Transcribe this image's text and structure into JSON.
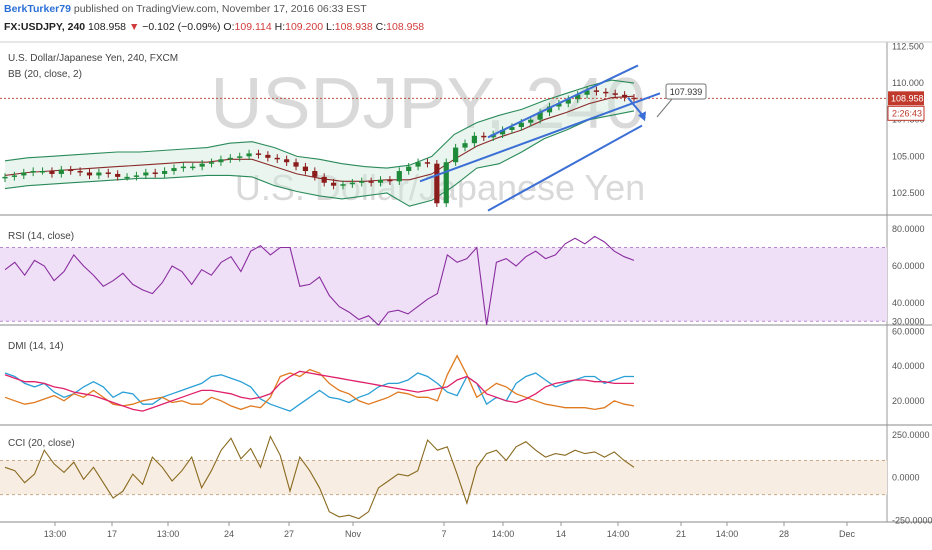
{
  "header": {
    "author": "BerkTurker79",
    "published": "published on TradingView.com, November 17, 2016 06:33 EST",
    "symbol": "FX:USDJPY, 240",
    "last": "108.958",
    "arrow": "▼",
    "change": "−0.102 (−0.09%)",
    "o_label": "O:",
    "o_val": "109.114",
    "h_label": "H:",
    "h_val": "109.200",
    "l_label": "L:",
    "l_val": "108.938",
    "c_label": "C:",
    "c_val": "108.958"
  },
  "price_pane": {
    "title": "U.S. Dollar/Japanese Yen, 240, FXCM",
    "indicator": "BB (20, close, 2)",
    "watermark_symbol": "USDJPY, 240",
    "watermark_name": "U.S. Dollar/Japanese Yen",
    "last_price_tag": "108.958",
    "countdown_tag": "2:26:43",
    "target_label": "107.939"
  },
  "rsi_pane": {
    "title": "RSI (14, close)"
  },
  "dmi_pane": {
    "title": "DMI (14, 14)"
  },
  "cci_pane": {
    "title": "CCI (20, close)"
  },
  "colors": {
    "up_candle": "#1e8a3a",
    "down_candle": "#8b1c1c",
    "bb_band": "#2a8a5a",
    "bb_basis": "#8b2a2a",
    "channel": "#3b6fd6",
    "rsi": "#8a2ea0",
    "rsi_band": "#efe0f7",
    "dmi_plus": "#2a9fd6",
    "dmi_minus": "#e07a20",
    "adx": "#e0206a",
    "cci": "#8a6a20",
    "cci_band": "#f7ede2",
    "last_tag": "#c0392b"
  },
  "chart_data": [
    {
      "type": "candlestick",
      "title": "U.S. Dollar/Japanese Yen, 240, FXCM",
      "ylim": [
        101.0,
        112.8
      ],
      "y_ticks": [
        "112.500",
        "110.000",
        "107.500",
        "105.000",
        "102.500"
      ],
      "y_tick_values": [
        112.5,
        110.0,
        107.5,
        105.0,
        102.5
      ],
      "x_ticks": [
        "13:00",
        "17",
        "13:00",
        "24",
        "27",
        "Nov",
        "7",
        "14:00",
        "14",
        "14:00",
        "21",
        "14:00",
        "28",
        "Dec"
      ],
      "close_series": [
        103.6,
        103.7,
        103.9,
        104.0,
        104.0,
        103.8,
        104.1,
        104.0,
        103.9,
        103.7,
        103.9,
        103.8,
        103.6,
        103.6,
        103.7,
        103.9,
        103.8,
        104.0,
        104.2,
        104.3,
        104.3,
        104.5,
        104.6,
        104.8,
        104.9,
        105.0,
        105.2,
        105.1,
        104.9,
        104.8,
        104.6,
        104.3,
        104.0,
        103.6,
        103.2,
        103.0,
        103.1,
        103.2,
        103.3,
        103.2,
        103.4,
        103.3,
        104.0,
        104.3,
        104.6,
        104.5,
        101.8,
        104.6,
        105.6,
        105.9,
        106.4,
        106.3,
        106.5,
        106.8,
        107.0,
        107.3,
        107.5,
        108.0,
        108.4,
        108.6,
        108.9,
        109.2,
        109.5,
        109.4,
        109.3,
        109.2,
        109.0,
        108.96
      ],
      "bb_upper": [
        104.7,
        104.9,
        105.0,
        105.1,
        105.2,
        105.3,
        105.3,
        105.4,
        105.5,
        105.6,
        105.9,
        106.0,
        105.6,
        105.0,
        104.8,
        104.5,
        104.3,
        104.2,
        104.4,
        105.0,
        106.5,
        107.3,
        107.8,
        108.2,
        108.8,
        109.3,
        109.8,
        110.2,
        110.0
      ],
      "bb_lower": [
        102.8,
        103.0,
        103.1,
        103.2,
        103.3,
        103.4,
        103.5,
        103.5,
        103.6,
        103.7,
        103.7,
        103.6,
        103.0,
        102.6,
        102.3,
        102.1,
        102.3,
        102.5,
        101.6,
        102.0,
        103.0,
        104.2,
        104.5,
        105.3,
        106.2,
        106.8,
        107.5,
        107.8,
        108.1
      ],
      "bb_basis": [
        103.7,
        103.9,
        104.0,
        104.1,
        104.2,
        104.3,
        104.4,
        104.5,
        104.6,
        104.6,
        104.8,
        104.8,
        104.3,
        103.8,
        103.5,
        103.3,
        103.3,
        103.4,
        103.4,
        103.8,
        104.8,
        105.7,
        106.3,
        106.8,
        107.5,
        108.0,
        108.6,
        109.0,
        109.1
      ],
      "channel_upper": {
        "from": [
          488,
          106.3
        ],
        "to": [
          638,
          111.2
        ]
      },
      "channel_lower": {
        "from": [
          488,
          101.3
        ],
        "to": [
          642,
          107.1
        ]
      },
      "midline": {
        "from": [
          420,
          103.3
        ],
        "to": [
          660,
          109.3
        ]
      },
      "projection_arrow": {
        "from": [
          628,
          109.0
        ],
        "to": [
          645,
          107.6
        ]
      },
      "last_price": 108.958
    },
    {
      "type": "line",
      "title": "RSI (14, close)",
      "ylim": [
        28,
        86
      ],
      "y_ticks": [
        "80.0000",
        "60.0000",
        "40.0000",
        "30.0000"
      ],
      "y_tick_values": [
        80,
        60,
        40,
        30
      ],
      "band": [
        30,
        70
      ],
      "values": [
        58,
        62,
        55,
        63,
        60,
        52,
        57,
        66,
        60,
        55,
        49,
        52,
        56,
        50,
        47,
        45,
        51,
        60,
        57,
        50,
        58,
        55,
        62,
        65,
        57,
        68,
        71,
        66,
        70,
        70,
        49,
        50,
        54,
        44,
        38,
        35,
        31,
        33,
        28,
        35,
        36,
        34,
        38,
        42,
        45,
        66,
        62,
        64,
        70,
        28,
        62,
        64,
        60,
        65,
        68,
        64,
        66,
        72,
        75,
        72,
        76,
        73,
        68,
        65,
        63
      ]
    },
    {
      "type": "line",
      "title": "DMI (14, 14)",
      "ylim": [
        6,
        62
      ],
      "y_ticks": [
        "60.0000",
        "40.0000",
        "20.0000"
      ],
      "y_tick_values": [
        60,
        40,
        20
      ],
      "series": [
        {
          "values": [
            36,
            34,
            30,
            28,
            30,
            25,
            22,
            24,
            28,
            31,
            28,
            22,
            25,
            24,
            18,
            18,
            22,
            24,
            26,
            28,
            30,
            34,
            35,
            33,
            31,
            28,
            21,
            18,
            16,
            14,
            18,
            22,
            26,
            22,
            21,
            19,
            22,
            24,
            28,
            30,
            30,
            32,
            36,
            34,
            30,
            25,
            23,
            34,
            30,
            18,
            22,
            20,
            30,
            34,
            36,
            32,
            28,
            30,
            32,
            34,
            34,
            30,
            32,
            34,
            34
          ]
        },
        {
          "values": [
            22,
            20,
            18,
            19,
            21,
            23,
            20,
            24,
            22,
            26,
            22,
            18,
            17,
            18,
            20,
            21,
            22,
            19,
            20,
            18,
            18,
            22,
            20,
            17,
            15,
            17,
            16,
            22,
            34,
            36,
            34,
            38,
            36,
            30,
            26,
            24,
            20,
            18,
            20,
            22,
            25,
            24,
            22,
            22,
            20,
            35,
            46,
            35,
            22,
            26,
            30,
            28,
            24,
            22,
            20,
            18,
            17,
            16,
            16,
            16,
            15,
            16,
            20,
            18,
            17
          ]
        },
        {
          "values": [
            35,
            33,
            31,
            31,
            30,
            28,
            27,
            25,
            24,
            23,
            21,
            19,
            17,
            15,
            14,
            16,
            18,
            20,
            22,
            24,
            26,
            26,
            25,
            24,
            22,
            21,
            22,
            24,
            30,
            34,
            37,
            36,
            35,
            34,
            33,
            32,
            31,
            30,
            29,
            28,
            27,
            26,
            25,
            26,
            27,
            28,
            32,
            34,
            30,
            24,
            22,
            20,
            19,
            21,
            24,
            28,
            30,
            31,
            32,
            32,
            31,
            31,
            30,
            30,
            30
          ]
        }
      ]
    },
    {
      "type": "line",
      "title": "CCI (20, close)",
      "ylim": [
        -260,
        290
      ],
      "y_ticks": [
        "250.0000",
        "0.0000",
        "-250.0000"
      ],
      "y_tick_values": [
        250,
        0,
        -250
      ],
      "band": [
        -100,
        100
      ],
      "values": [
        60,
        40,
        -30,
        20,
        160,
        80,
        30,
        90,
        -10,
        60,
        -30,
        -120,
        -80,
        20,
        -40,
        120,
        60,
        -20,
        40,
        120,
        -60,
        40,
        160,
        230,
        110,
        170,
        60,
        240,
        130,
        -80,
        120,
        40,
        -60,
        -200,
        -230,
        -220,
        -240,
        -200,
        -60,
        -20,
        20,
        10,
        40,
        220,
        160,
        180,
        20,
        -150,
        60,
        140,
        160,
        100,
        180,
        210,
        160,
        120,
        140,
        130,
        160,
        140,
        150,
        120,
        150,
        100,
        60
      ]
    }
  ]
}
